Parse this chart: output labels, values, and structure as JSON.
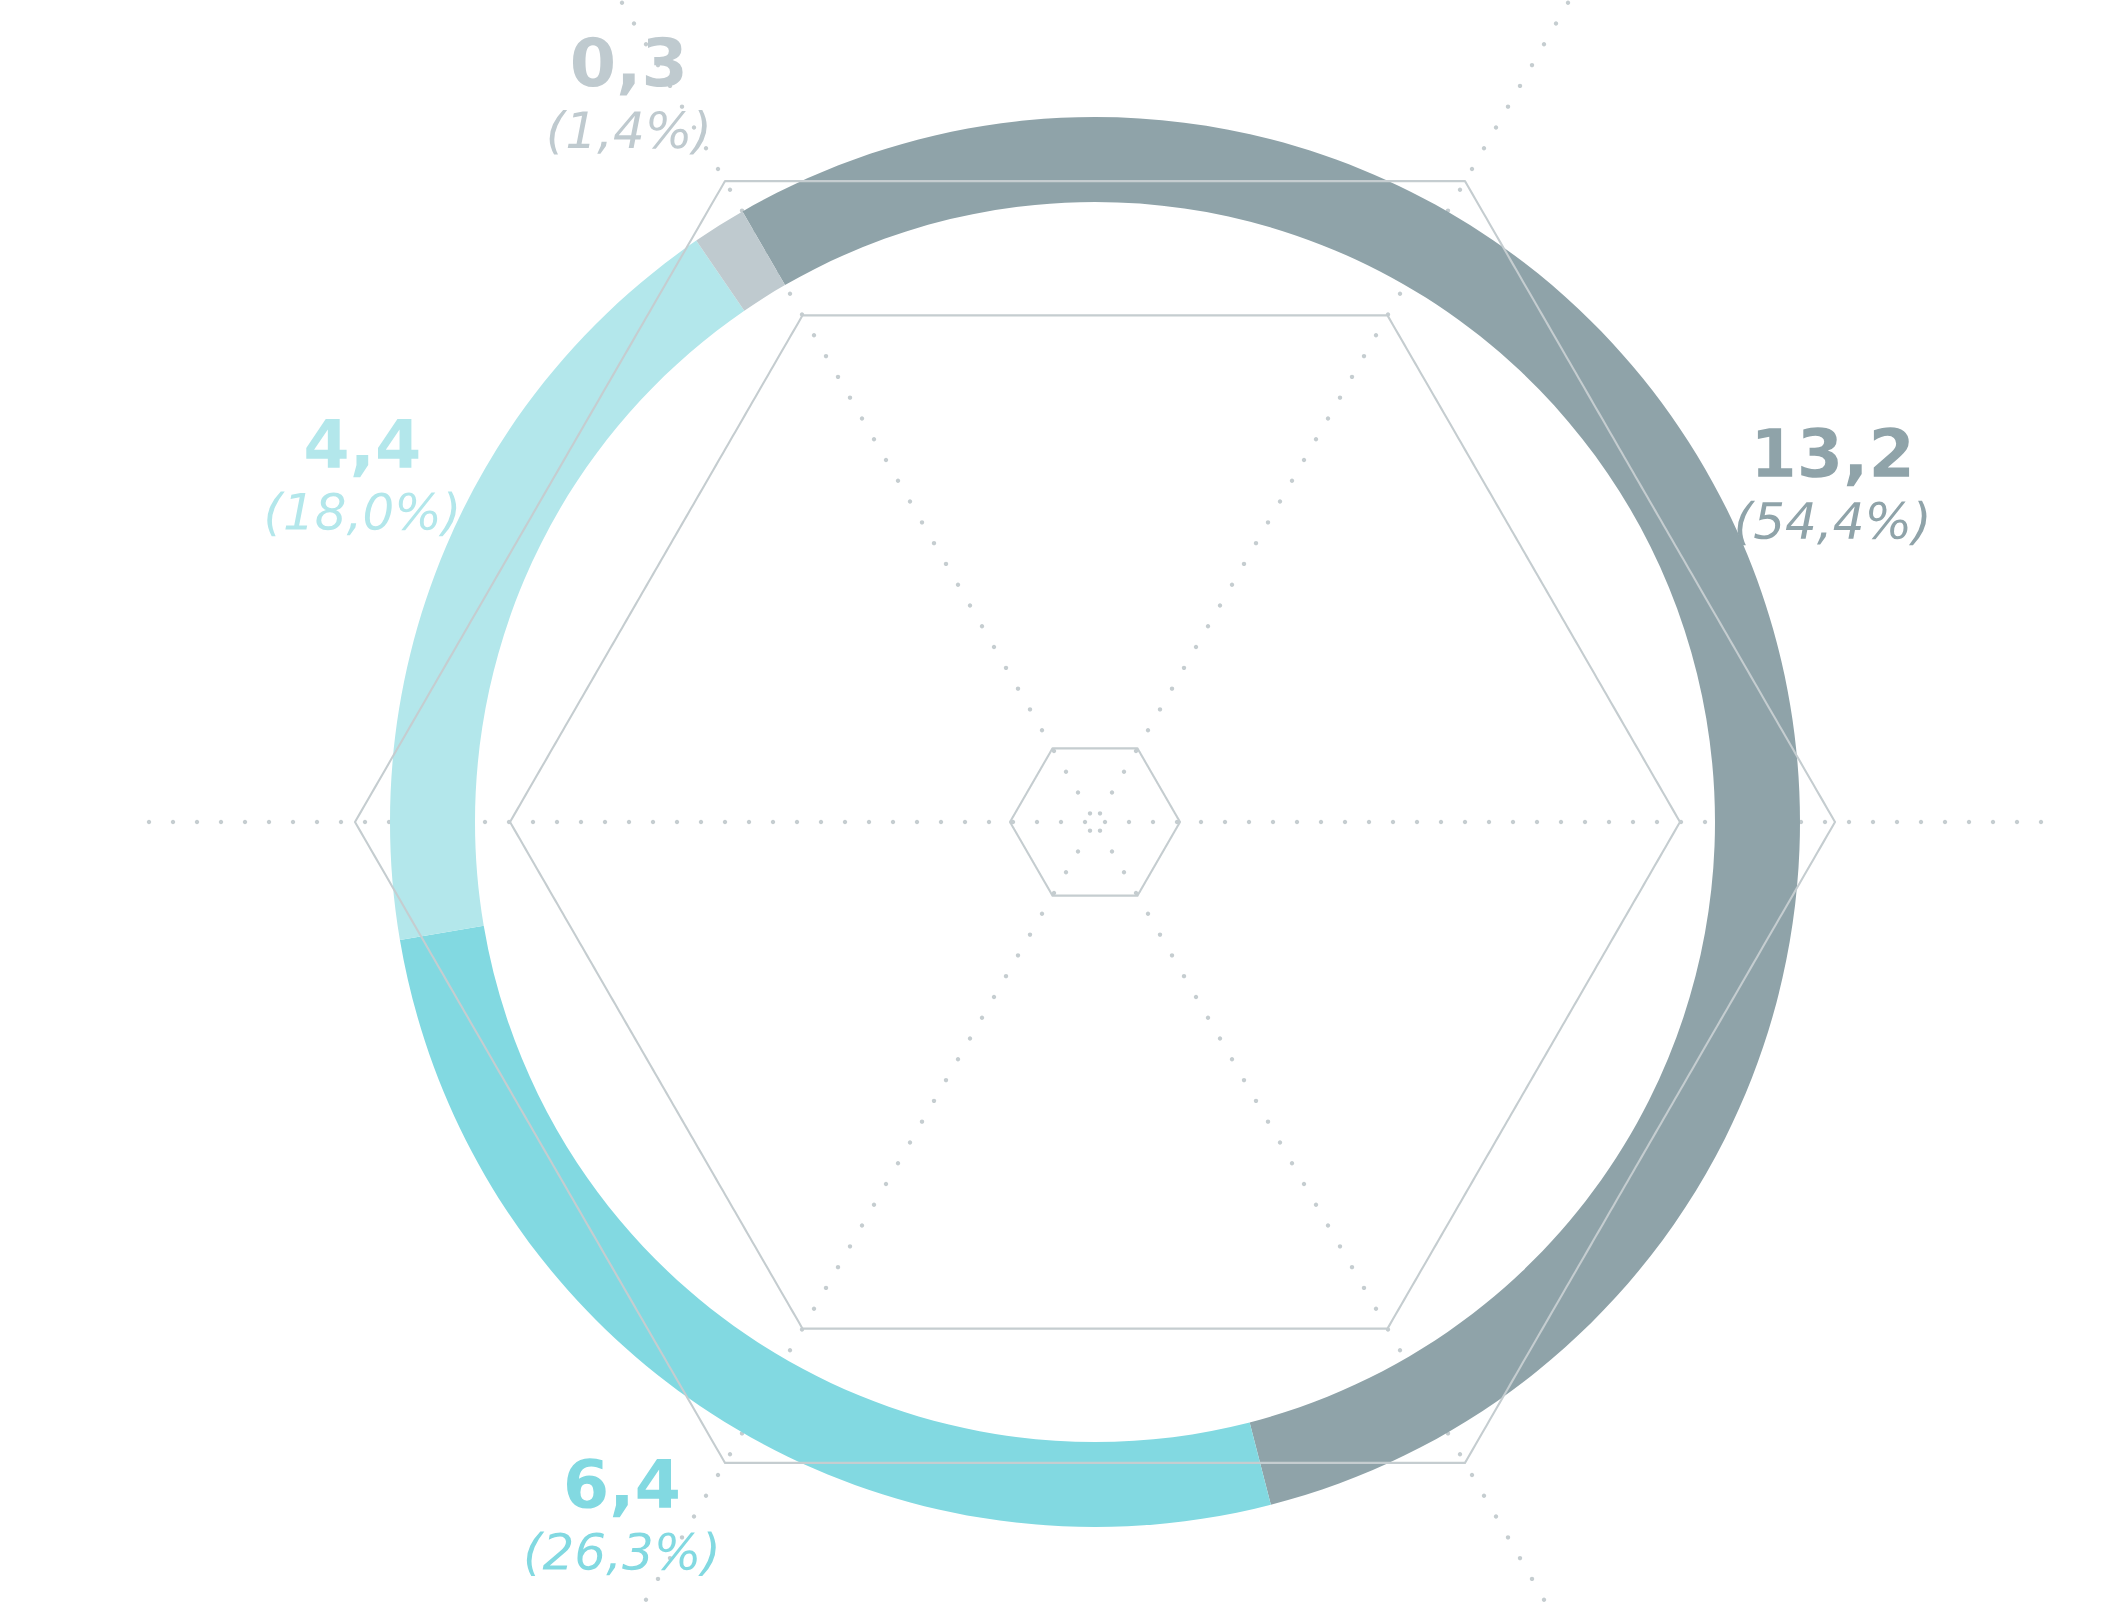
{
  "chart_data": {
    "type": "donut",
    "categories": [
      null,
      null,
      null,
      null
    ],
    "values": [
      13.2,
      6.4,
      4.4,
      0.3
    ],
    "colors": [
      "#8fa3a9",
      "#82d9e1",
      "#b3e7eb",
      "#bfcacf"
    ],
    "value_labels": [
      "13,2\n(54,4%)",
      "6,4\n(26,3%)",
      "4,4\n(18,0%)",
      "0,3\n(1,4%)"
    ]
  }
}
